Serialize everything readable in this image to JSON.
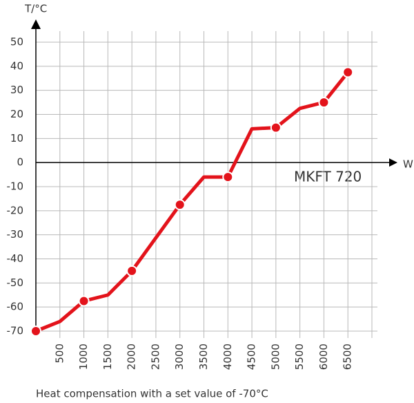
{
  "chart_data": {
    "type": "line",
    "annotation": "MKFT 720",
    "y_label": "T/°C",
    "x_label": "W",
    "caption": "Heat compensation with a set value of -70°C",
    "xlim": [
      0,
      7000
    ],
    "xticks": [
      500,
      1000,
      1500,
      2000,
      2500,
      3000,
      3500,
      4000,
      4500,
      5000,
      5500,
      6000,
      6500
    ],
    "ylim": [
      -70,
      50
    ],
    "yticks": [
      -70,
      -60,
      -50,
      -40,
      -30,
      -20,
      -10,
      0,
      10,
      20,
      30,
      40,
      50
    ],
    "grid": true,
    "series": [
      {
        "mode": "line",
        "color": "#e3131b",
        "x": [
          0,
          500,
          1000,
          1500,
          2000,
          3000,
          3500,
          4000,
          4500,
          5000,
          5500,
          6000,
          6500
        ],
        "values": [
          -70,
          -66,
          -57.5,
          -55,
          -45,
          -17.5,
          -6,
          -6,
          14,
          14.5,
          22.5,
          25,
          37.5
        ]
      },
      {
        "mode": "markers",
        "color": "#e3131b",
        "x": [
          0,
          1000,
          2000,
          3000,
          4000,
          5000,
          6000,
          6500
        ],
        "values": [
          -70,
          -57.5,
          -45,
          -17.5,
          -6,
          14.5,
          25,
          37.5
        ]
      }
    ]
  }
}
